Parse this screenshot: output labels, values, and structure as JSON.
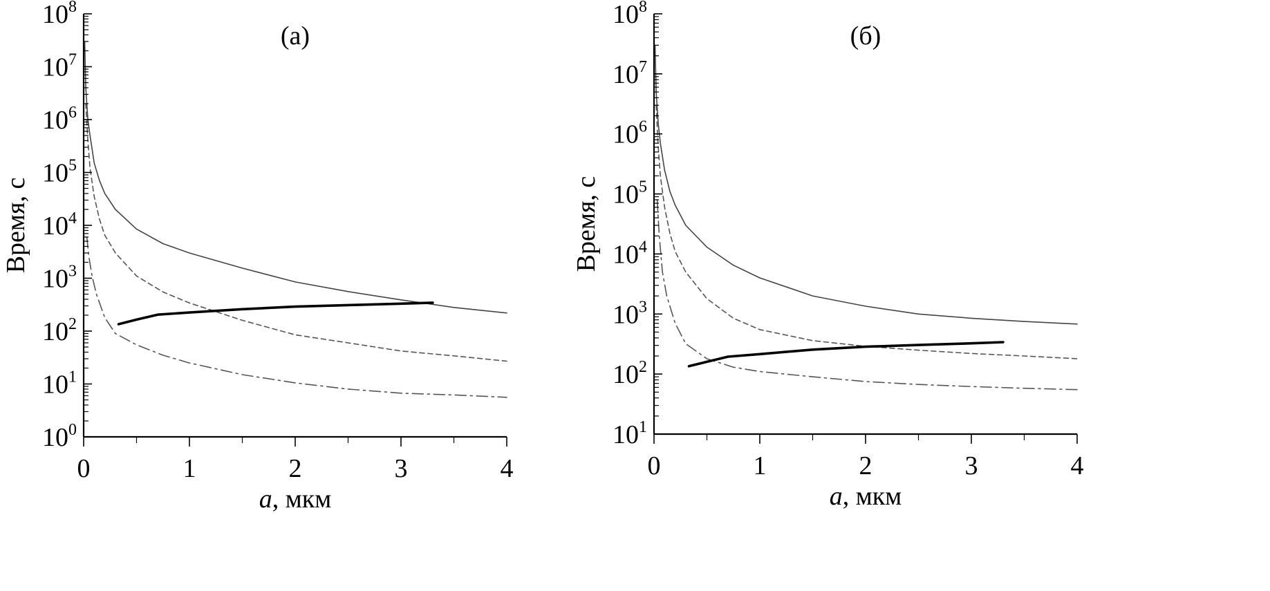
{
  "figure": {
    "background": "#ffffff"
  },
  "chart_data": [
    {
      "panel": "(a)",
      "type": "line",
      "title": "(а)",
      "xlabel_italic": "a",
      "xlabel_rest": ", мкм",
      "ylabel": "Время, с",
      "xlim": [
        0,
        4
      ],
      "ylim": [
        1,
        100000000
      ],
      "yscale": "log",
      "xticks": [
        0,
        1,
        2,
        3,
        4
      ],
      "xtick_labels": [
        "0",
        "1",
        "2",
        "3",
        "4"
      ],
      "yticks": [
        1,
        10,
        100,
        1000,
        10000,
        100000,
        1000000,
        10000000,
        100000000
      ],
      "ytick_base": "10",
      "ytick_exponents": [
        "0",
        "1",
        "2",
        "3",
        "4",
        "5",
        "6",
        "7",
        "8"
      ],
      "grid": false,
      "legend": "none",
      "series": [
        {
          "style": "solid-thin",
          "color": "#444444",
          "x": [
            0.01,
            0.02,
            0.04,
            0.06,
            0.1,
            0.15,
            0.2,
            0.3,
            0.5,
            0.75,
            1,
            1.5,
            2,
            2.5,
            3,
            3.5,
            4
          ],
          "y": [
            30000000,
            4000000,
            1000000,
            500000,
            150000,
            70000,
            40000,
            20000,
            8500,
            4500,
            3000,
            1550,
            850,
            560,
            390,
            280,
            220
          ]
        },
        {
          "style": "dashed",
          "color": "#555555",
          "x": [
            0.02,
            0.04,
            0.06,
            0.1,
            0.15,
            0.2,
            0.3,
            0.5,
            0.75,
            1,
            1.5,
            2,
            2.5,
            3,
            3.5,
            4
          ],
          "y": [
            2000000,
            400000,
            120000,
            35000,
            13000,
            6500,
            3000,
            1100,
            550,
            340,
            160,
            85,
            60,
            42,
            34,
            27
          ]
        },
        {
          "style": "dash-dot",
          "color": "#555555",
          "x": [
            0.03,
            0.05,
            0.08,
            0.12,
            0.2,
            0.3,
            0.5,
            0.75,
            1,
            1.5,
            2,
            2.5,
            3,
            3.5,
            4
          ],
          "y": [
            6000,
            2500,
            1100,
            500,
            180,
            90,
            55,
            35,
            25,
            15,
            10.5,
            8,
            6.7,
            6.2,
            5.6
          ]
        },
        {
          "style": "solid-thick",
          "color": "#000000",
          "x": [
            0.33,
            0.5,
            0.7,
            1,
            1.5,
            2,
            2.5,
            3,
            3.3
          ],
          "y": [
            135,
            165,
            205,
            225,
            260,
            290,
            310,
            330,
            345
          ]
        }
      ]
    },
    {
      "panel": "(b)",
      "type": "line",
      "title": "(б)",
      "xlabel_italic": "a",
      "xlabel_rest": ", мкм",
      "ylabel": "Время, с",
      "xlim": [
        0,
        4
      ],
      "ylim": [
        10,
        100000000
      ],
      "yscale": "log",
      "xticks": [
        0,
        1,
        2,
        3,
        4
      ],
      "xtick_labels": [
        "0",
        "1",
        "2",
        "3",
        "4"
      ],
      "yticks": [
        10,
        100,
        1000,
        10000,
        100000,
        1000000,
        10000000,
        100000000
      ],
      "ytick_base": "10",
      "ytick_exponents": [
        "1",
        "2",
        "3",
        "4",
        "5",
        "6",
        "7",
        "8"
      ],
      "grid": false,
      "legend": "none",
      "series": [
        {
          "style": "solid-thin",
          "color": "#444444",
          "x": [
            0.01,
            0.02,
            0.04,
            0.06,
            0.1,
            0.15,
            0.2,
            0.3,
            0.5,
            0.75,
            1,
            1.5,
            2,
            2.5,
            3,
            3.5,
            4
          ],
          "y": [
            30000000,
            5000000,
            1500000,
            700000,
            250000,
            110000,
            65000,
            30000,
            13000,
            6500,
            4000,
            2000,
            1350,
            1000,
            850,
            750,
            680
          ]
        },
        {
          "style": "dashed",
          "color": "#555555",
          "x": [
            0.02,
            0.04,
            0.06,
            0.1,
            0.15,
            0.2,
            0.3,
            0.5,
            0.75,
            1,
            1.5,
            2,
            2.5,
            3,
            3.5,
            4
          ],
          "y": [
            3000000,
            600000,
            200000,
            60000,
            22000,
            11000,
            5000,
            1800,
            850,
            550,
            360,
            290,
            250,
            220,
            200,
            180
          ]
        },
        {
          "style": "dash-dot",
          "color": "#555555",
          "x": [
            0.03,
            0.05,
            0.08,
            0.12,
            0.2,
            0.3,
            0.5,
            0.75,
            1,
            1.5,
            2,
            2.5,
            3,
            3.5,
            4
          ],
          "y": [
            80000,
            20000,
            5000,
            2000,
            700,
            320,
            180,
            130,
            110,
            90,
            75,
            67,
            62,
            58,
            55
          ]
        },
        {
          "style": "solid-thick",
          "color": "#000000",
          "x": [
            0.33,
            0.5,
            0.7,
            1,
            1.5,
            2,
            2.5,
            3,
            3.3
          ],
          "y": [
            135,
            160,
            195,
            215,
            255,
            285,
            305,
            325,
            340
          ]
        }
      ]
    }
  ]
}
